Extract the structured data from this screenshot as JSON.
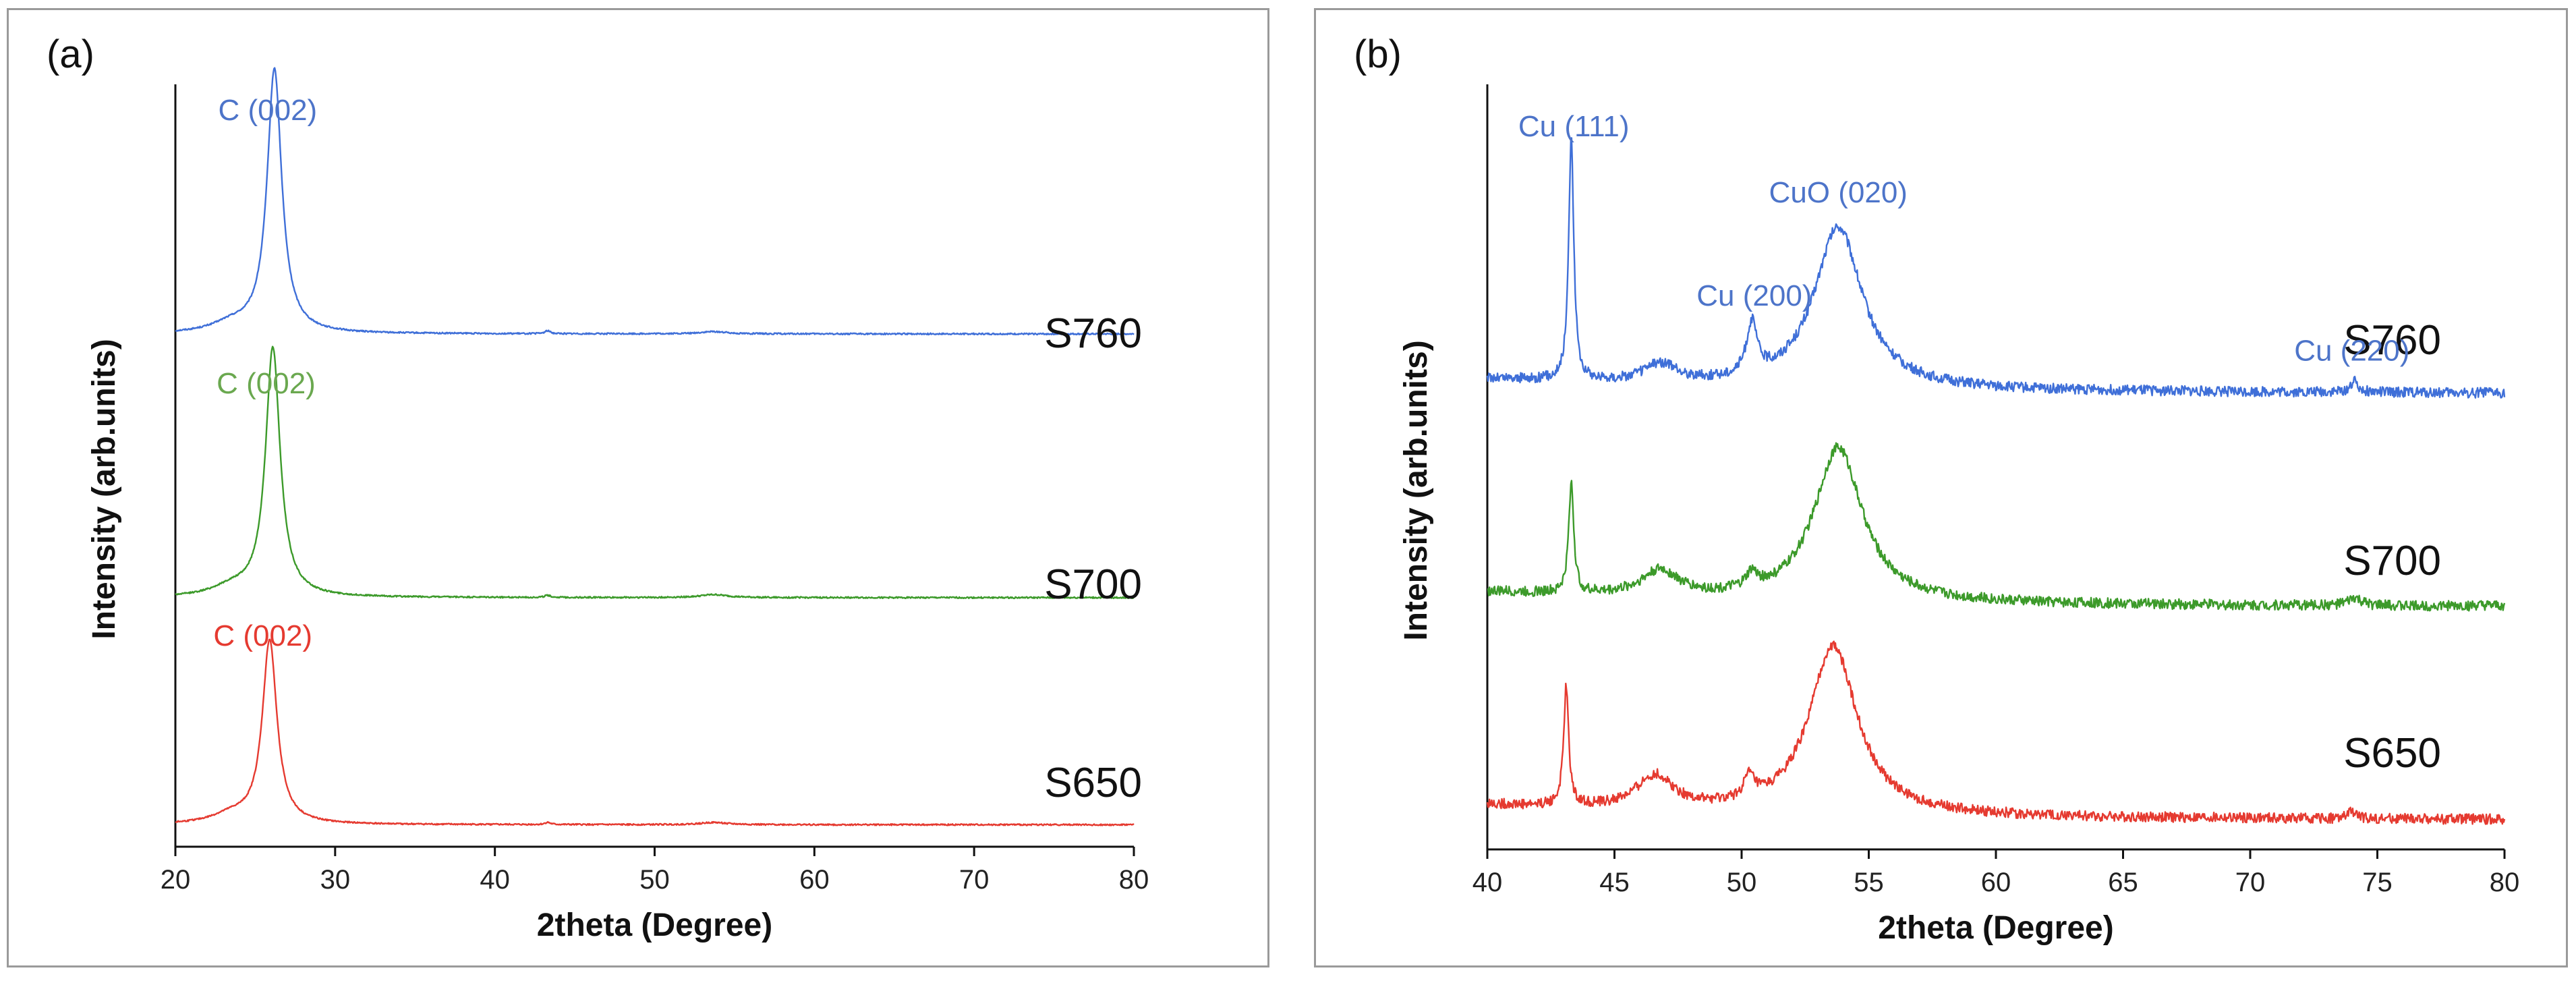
{
  "colors": {
    "S760": "#3f6fd8",
    "S700": "#3c9a2a",
    "S650": "#e53a30",
    "peak_label": "#4d74c9",
    "axis": "#111111"
  },
  "chart_data": [
    {
      "id": "a",
      "type": "line",
      "panel_label": "(a)",
      "title": "",
      "xlabel": "2theta (Degree)",
      "ylabel": "Intensity (arb.units)",
      "xlim": [
        20,
        80
      ],
      "xticks": [
        20,
        30,
        40,
        50,
        60,
        70,
        80
      ],
      "ylim": [
        0,
        1.05
      ],
      "grid": false,
      "series": [
        {
          "name": "S760",
          "color": "#3f6fd8",
          "offset": 0.7,
          "peak_label": "C (002)",
          "peak_label_color": "#4d74c9",
          "peaks": [
            {
              "pos": 26.2,
              "height": 0.36,
              "width": 0.55
            },
            {
              "pos": 23.5,
              "height": 0.012,
              "width": 1.5
            },
            {
              "pos": 43.3,
              "height": 0.004,
              "width": 0.2
            },
            {
              "pos": 53.7,
              "height": 0.003,
              "width": 1.0
            }
          ],
          "noise": 0.001
        },
        {
          "name": "S700",
          "color": "#3c9a2a",
          "offset": 0.34,
          "peak_label": "C (002)",
          "peak_label_color": "#6aa84f",
          "peaks": [
            {
              "pos": 26.1,
              "height": 0.34,
              "width": 0.55
            },
            {
              "pos": 23.5,
              "height": 0.012,
              "width": 1.5
            },
            {
              "pos": 43.3,
              "height": 0.003,
              "width": 0.2
            },
            {
              "pos": 53.7,
              "height": 0.004,
              "width": 1.0
            }
          ],
          "noise": 0.001
        },
        {
          "name": "S650",
          "color": "#e53a30",
          "offset": 0.03,
          "peak_label": "C (002)",
          "peak_label_color": "#e53a30",
          "peaks": [
            {
              "pos": 25.9,
              "height": 0.25,
              "width": 0.55
            },
            {
              "pos": 23.5,
              "height": 0.012,
              "width": 1.5
            },
            {
              "pos": 43.3,
              "height": 0.003,
              "width": 0.2
            },
            {
              "pos": 53.7,
              "height": 0.003,
              "width": 1.0
            }
          ],
          "noise": 0.001
        }
      ]
    },
    {
      "id": "b",
      "type": "line",
      "panel_label": "(b)",
      "title": "",
      "xlabel": "2theta (Degree)",
      "ylabel": "Intensity (arb.units)",
      "xlim": [
        40,
        80
      ],
      "xticks": [
        40,
        45,
        50,
        55,
        60,
        65,
        70,
        75,
        80
      ],
      "ylim": [
        0,
        1.05
      ],
      "grid": false,
      "annotations": [
        {
          "text": "Cu (111)",
          "x": 43.4,
          "y": 0.97
        },
        {
          "text": "Cu (200)",
          "x": 50.5,
          "y": 0.74
        },
        {
          "text": "CuO (020)",
          "x": 53.8,
          "y": 0.88
        },
        {
          "text": "Cu (220)",
          "x": 74.0,
          "y": 0.665
        }
      ],
      "series": [
        {
          "name": "S760",
          "color": "#3f6fd8",
          "offset": 0.62,
          "peaks": [
            {
              "pos": 43.3,
              "height": 0.33,
              "width": 0.12
            },
            {
              "pos": 46.8,
              "height": 0.025,
              "width": 0.8
            },
            {
              "pos": 50.4,
              "height": 0.07,
              "width": 0.25
            },
            {
              "pos": 53.8,
              "height": 0.22,
              "width": 1.15
            },
            {
              "pos": 74.1,
              "height": 0.015,
              "width": 0.2
            }
          ],
          "baseline": 0.02,
          "noise": 0.007
        },
        {
          "name": "S700",
          "color": "#3c9a2a",
          "offset": 0.33,
          "peaks": [
            {
              "pos": 43.3,
              "height": 0.15,
              "width": 0.12
            },
            {
              "pos": 46.8,
              "height": 0.035,
              "width": 0.9
            },
            {
              "pos": 50.4,
              "height": 0.02,
              "width": 0.25
            },
            {
              "pos": 53.8,
              "height": 0.21,
              "width": 1.15
            },
            {
              "pos": 74.1,
              "height": 0.01,
              "width": 0.3
            }
          ],
          "baseline": 0.02,
          "noise": 0.007
        },
        {
          "name": "S650",
          "color": "#e53a30",
          "offset": 0.04,
          "peaks": [
            {
              "pos": 43.1,
              "height": 0.16,
              "width": 0.12
            },
            {
              "pos": 46.6,
              "height": 0.045,
              "width": 0.9
            },
            {
              "pos": 50.3,
              "height": 0.03,
              "width": 0.25
            },
            {
              "pos": 53.6,
              "height": 0.23,
              "width": 1.15
            },
            {
              "pos": 74.0,
              "height": 0.01,
              "width": 0.2
            }
          ],
          "baseline": 0.02,
          "noise": 0.007
        }
      ]
    }
  ]
}
